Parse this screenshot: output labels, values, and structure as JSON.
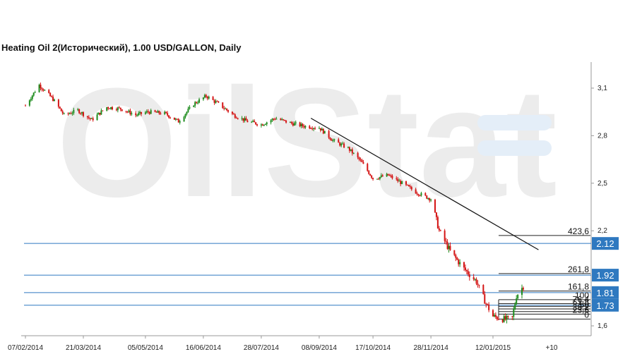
{
  "chart_data": {
    "type": "candlestick",
    "title": "Heating Oil 2(Исторический), 1.00 USD/GALLON, Daily",
    "xlabel": "",
    "ylabel": "",
    "ylim": [
      1.55,
      3.2
    ],
    "x_ticks": [
      "07/02/2014",
      "21/03/2014",
      "05/05/2014",
      "16/06/2014",
      "28/07/2014",
      "08/09/2014",
      "17/10/2014",
      "28/11/2014",
      "12/01/2015",
      "+10"
    ],
    "y_ticks": [
      "3,1",
      "2,8",
      "2,5",
      "2,2",
      "1,6"
    ],
    "watermark": "OilStat",
    "series": [
      {
        "dates": [
          "07/02/2014",
          "17/02/2014",
          "27/02/2014",
          "07/03/2014",
          "17/03/2014",
          "27/03/2014",
          "07/04/2014",
          "17/04/2014",
          "28/04/2014",
          "07/05/2014",
          "19/05/2014",
          "29/05/2014",
          "09/06/2014",
          "18/06/2014",
          "27/06/2014",
          "08/07/2014",
          "18/07/2014",
          "28/07/2014",
          "07/08/2014",
          "18/08/2014",
          "28/08/2014",
          "08/09/2014",
          "18/09/2014",
          "29/09/2014",
          "08/10/2014",
          "17/10/2014",
          "28/10/2014",
          "07/11/2014",
          "18/11/2014",
          "28/11/2014",
          "04/12/2014",
          "12/12/2014",
          "22/12/2014",
          "31/12/2014",
          "07/01/2015",
          "12/01/2015",
          "16/01/2015",
          "21/01/2015",
          "26/01/2015",
          "29/01/2015",
          "03/02/2015"
        ],
        "close": [
          2.99,
          3.12,
          3.03,
          2.93,
          2.96,
          2.9,
          2.98,
          2.97,
          2.93,
          2.95,
          2.94,
          2.89,
          3.0,
          3.05,
          3.0,
          2.93,
          2.89,
          2.87,
          2.91,
          2.88,
          2.86,
          2.85,
          2.77,
          2.72,
          2.64,
          2.53,
          2.55,
          2.5,
          2.44,
          2.4,
          2.2,
          2.07,
          1.96,
          1.88,
          1.74,
          1.66,
          1.65,
          1.64,
          1.65,
          1.79,
          1.85
        ]
      }
    ],
    "trendline": {
      "start": [
        "02/09/2014",
        2.91
      ],
      "end": [
        "14/02/2015",
        2.08
      ]
    },
    "fibonacci": [
      {
        "label": "423,6",
        "value": 2.17
      },
      {
        "label": "261,8",
        "value": 1.93
      },
      {
        "label": "161,8",
        "value": 1.82
      },
      {
        "label": "100",
        "value": 1.765
      },
      {
        "label": "76,4",
        "value": 1.74
      },
      {
        "label": "61,8",
        "value": 1.723
      },
      {
        "label": "50",
        "value": 1.707
      },
      {
        "label": "38,2",
        "value": 1.69
      },
      {
        "label": "23,6",
        "value": 1.674
      },
      {
        "label": "0",
        "value": 1.643
      }
    ],
    "levels": [
      {
        "label": "2.12",
        "value": 2.12
      },
      {
        "label": "1.92",
        "value": 1.92
      },
      {
        "label": "1.81",
        "value": 1.81
      },
      {
        "label": "1.73",
        "value": 1.73
      }
    ],
    "colors": {
      "up": "#1e8c1e",
      "down": "#d41414",
      "level": "#2f79c0",
      "badge": "#2f79c0"
    }
  }
}
